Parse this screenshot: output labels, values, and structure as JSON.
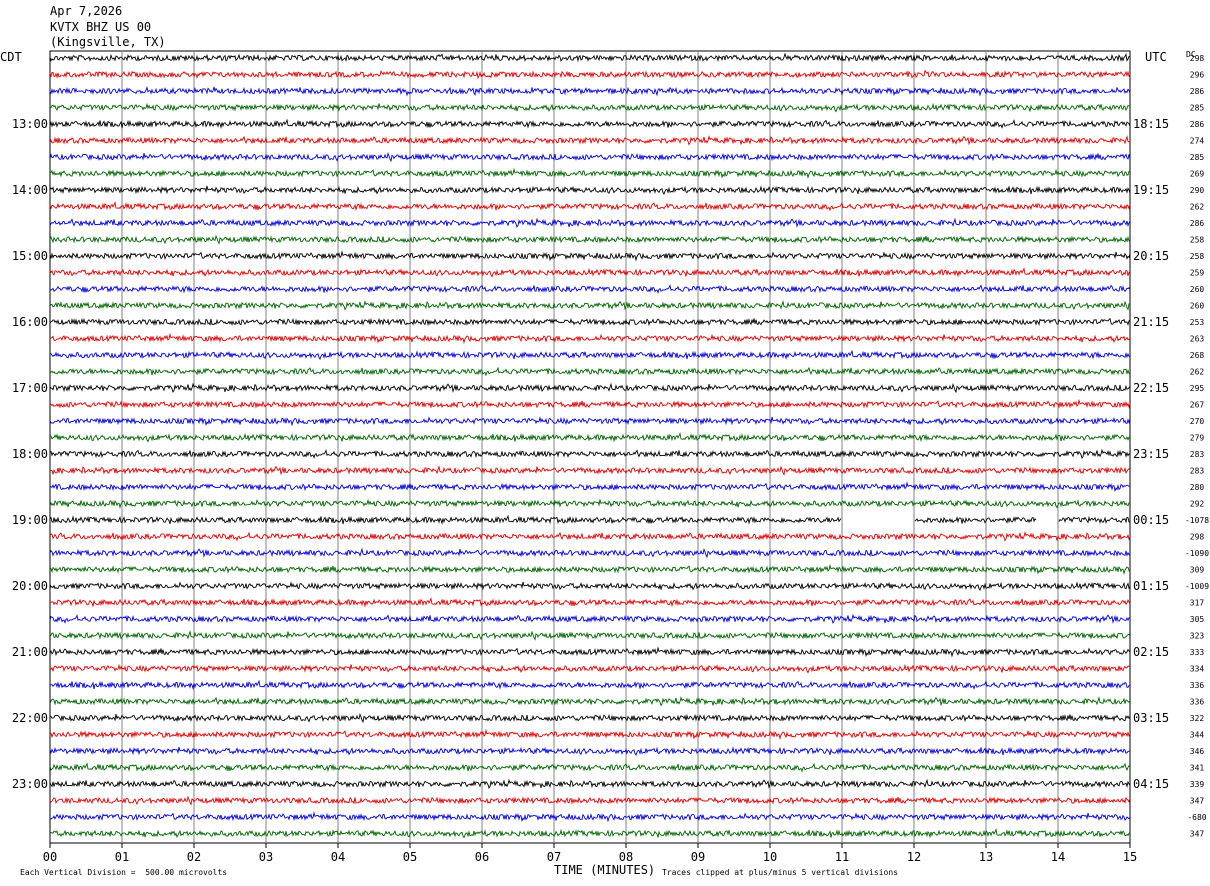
{
  "header": {
    "date": "Apr 7,2026",
    "station": "KVTX BHZ US 00",
    "location": "(Kingsville, TX)"
  },
  "left_tz": "CDT",
  "right_tz": "UTC",
  "dc_label": "DC",
  "footer": {
    "scale_note": "Each Vertical Division =  500.00 microvolts",
    "x_title": "TIME (MINUTES)",
    "clip_note": "Traces clipped at plus/minus 5 vertical divisions"
  },
  "colors": {
    "trace_cycle": [
      "#000000",
      "#e00000",
      "#0000e0",
      "#006400"
    ],
    "grid": "#808080"
  },
  "chart_data": {
    "type": "line",
    "title": "KVTX BHZ US 00",
    "xlabel": "TIME (MINUTES)",
    "xlim": [
      0,
      15
    ],
    "x_ticks": [
      "00",
      "01",
      "02",
      "03",
      "04",
      "05",
      "06",
      "07",
      "08",
      "09",
      "10",
      "11",
      "12",
      "13",
      "14",
      "15"
    ],
    "rows_per_hour": 4,
    "minutes_per_row": 15,
    "row_count": 48,
    "left_hour_labels": [
      "13:00",
      "14:00",
      "15:00",
      "16:00",
      "17:00",
      "18:00",
      "19:00",
      "20:00",
      "21:00",
      "22:00",
      "23:00"
    ],
    "right_hour_labels": [
      "18:15",
      "19:15",
      "20:15",
      "21:15",
      "22:15",
      "23:15",
      "00:15",
      "01:15",
      "02:15",
      "03:15",
      "04:15"
    ],
    "dc_offsets": [
      "298",
      "296",
      "286",
      "285",
      "286",
      "274",
      "285",
      "269",
      "290",
      "262",
      "286",
      "258",
      "258",
      "259",
      "260",
      "260",
      "253",
      "263",
      "268",
      "262",
      "295",
      "267",
      "270",
      "279",
      "283",
      "283",
      "280",
      "292",
      "-1078",
      "298",
      "-1090",
      "309",
      "-1009",
      "317",
      "305",
      "323",
      "333",
      "334",
      "336",
      "336",
      "322",
      "344",
      "346",
      "341",
      "339",
      "347",
      "-680",
      "347"
    ],
    "gap_segments": [
      {
        "row": 28,
        "from_min": 11.0,
        "to_min": 12.0
      },
      {
        "row": 28,
        "from_min": 13.7,
        "to_min": 14.0
      }
    ],
    "scale_microvolts_per_division": 500.0,
    "clip_divisions": 5
  }
}
